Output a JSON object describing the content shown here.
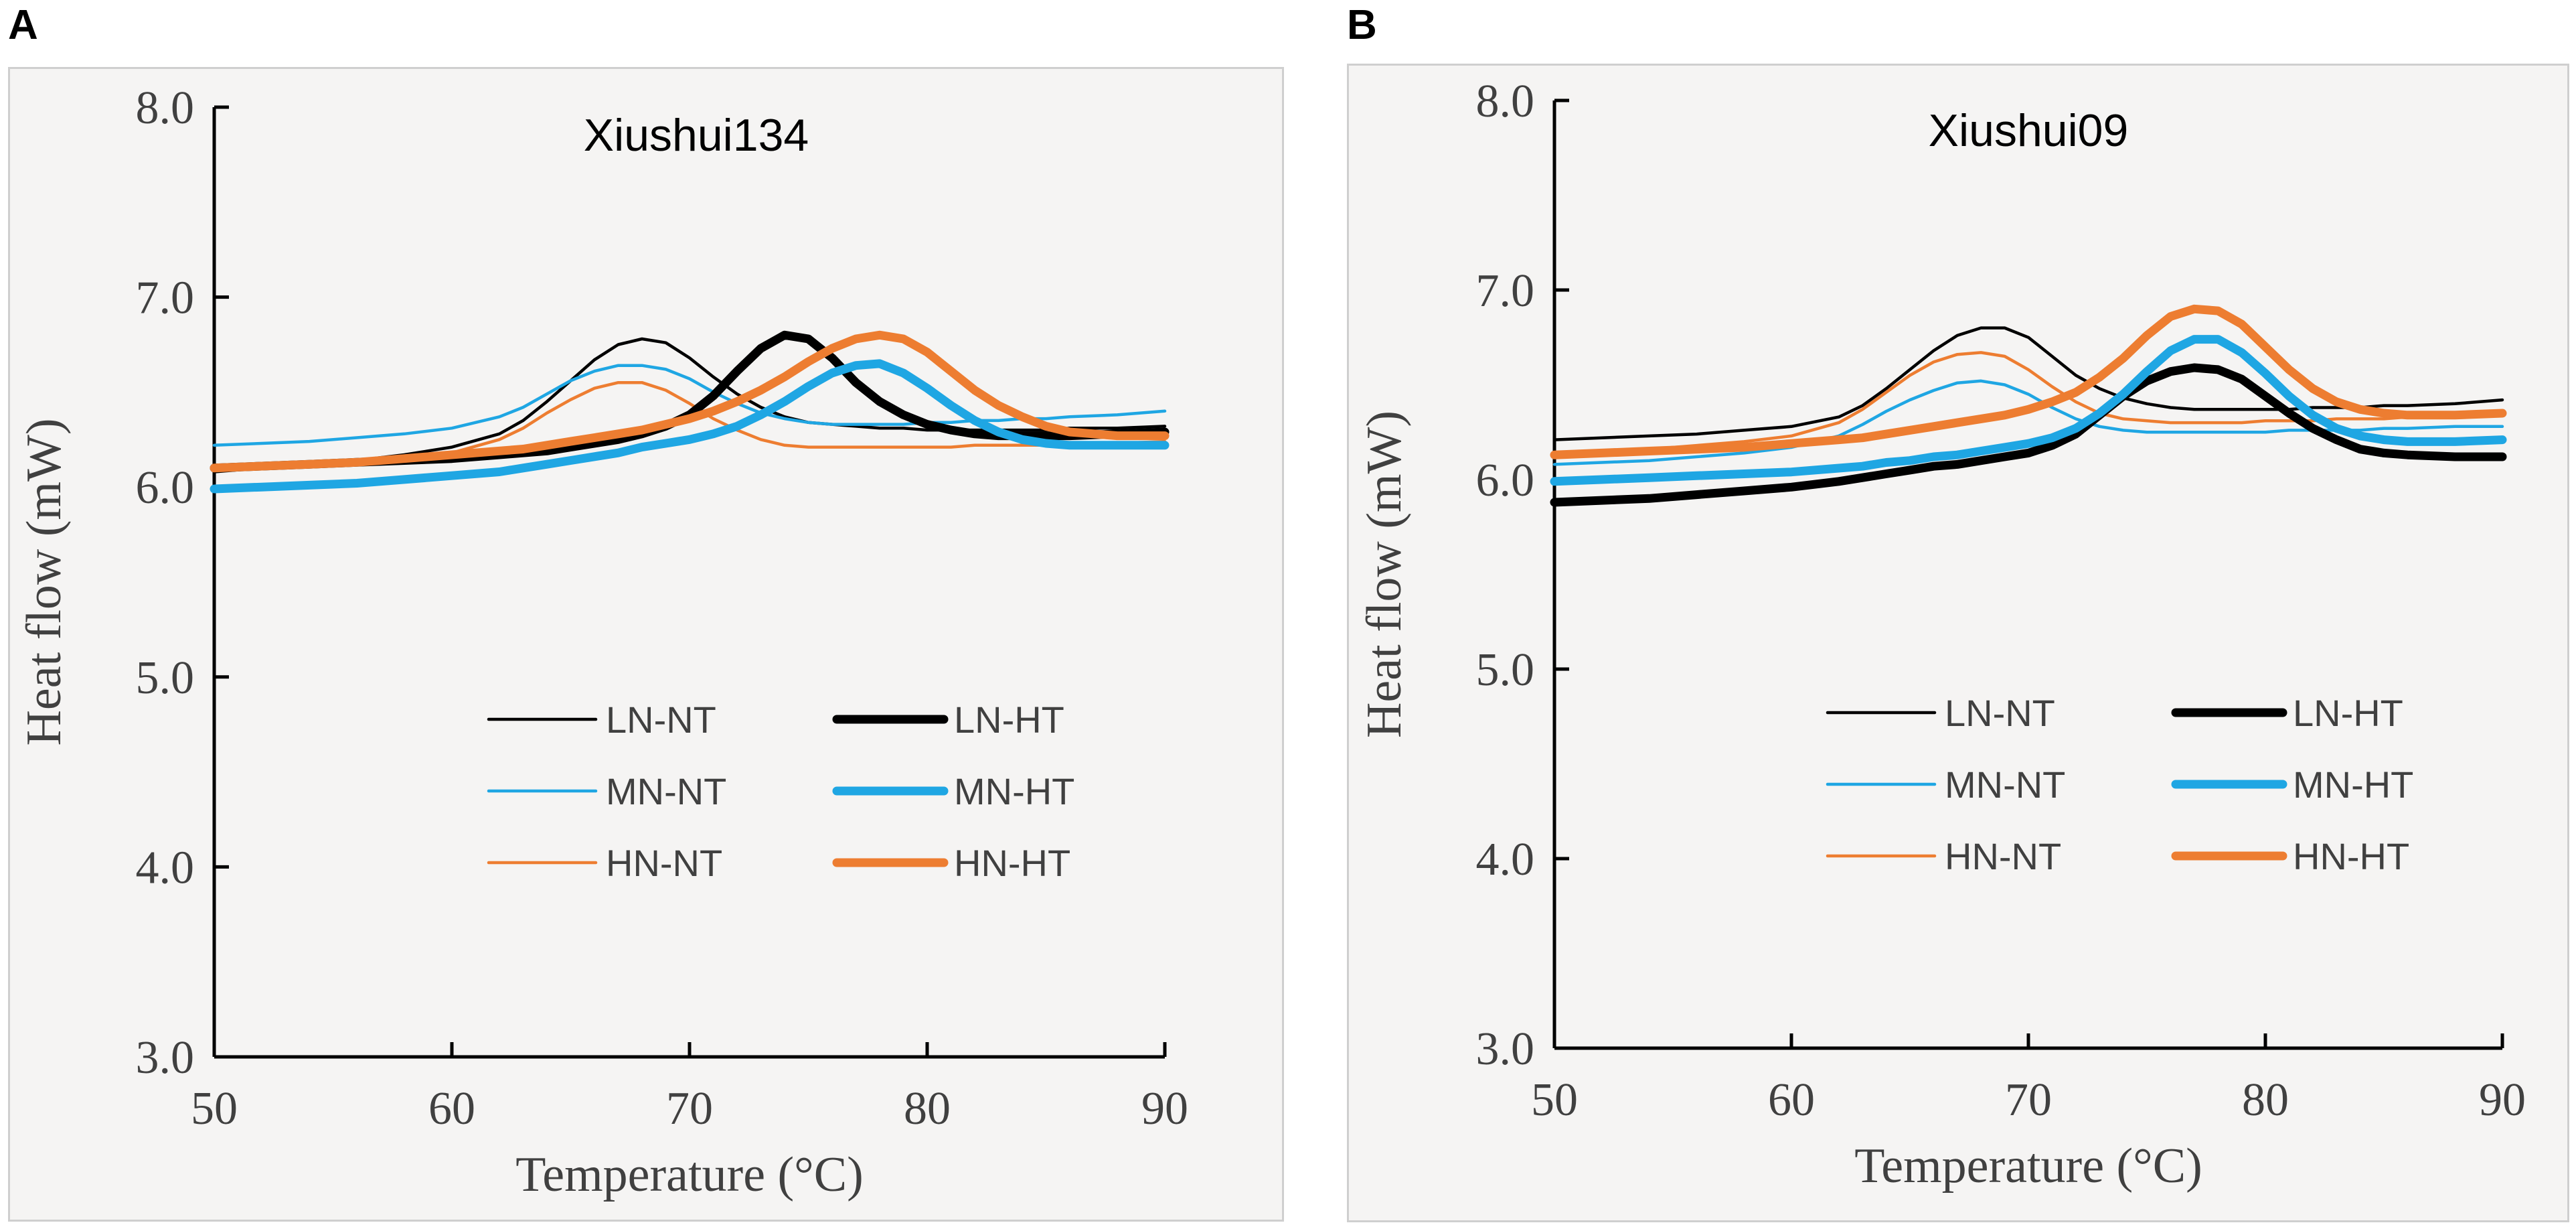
{
  "panels": [
    {
      "letter": "A"
    },
    {
      "letter": "B"
    }
  ],
  "chart_data": [
    {
      "type": "line",
      "title": "Xiushui134",
      "xlabel": "Temperature (°C)",
      "ylabel": "Heat flow (mW)",
      "xlim": [
        50,
        90
      ],
      "ylim": [
        3.0,
        8.0
      ],
      "xticks": [
        "50",
        "60",
        "70",
        "80",
        "90"
      ],
      "yticks": [
        "3.0",
        "4.0",
        "5.0",
        "6.0",
        "7.0",
        "8.0"
      ],
      "x": [
        50,
        52,
        54,
        56,
        58,
        60,
        62,
        63,
        64,
        65,
        66,
        67,
        68,
        69,
        70,
        71,
        72,
        73,
        74,
        75,
        76,
        77,
        78,
        79,
        80,
        81,
        82,
        83,
        84,
        85,
        86,
        88,
        90
      ],
      "series": [
        {
          "name": "LN-NT",
          "color": "#000000",
          "width": "thin",
          "values": [
            6.08,
            6.1,
            6.12,
            6.14,
            6.17,
            6.21,
            6.28,
            6.35,
            6.45,
            6.56,
            6.67,
            6.75,
            6.78,
            6.76,
            6.68,
            6.58,
            6.49,
            6.42,
            6.37,
            6.34,
            6.33,
            6.32,
            6.31,
            6.31,
            6.3,
            6.3,
            6.3,
            6.3,
            6.3,
            6.3,
            6.31,
            6.31,
            6.32
          ]
        },
        {
          "name": "LN-HT",
          "color": "#000000",
          "width": "thick",
          "values": [
            6.1,
            6.11,
            6.12,
            6.13,
            6.14,
            6.15,
            6.17,
            6.18,
            6.19,
            6.21,
            6.23,
            6.25,
            6.28,
            6.32,
            6.38,
            6.48,
            6.61,
            6.73,
            6.8,
            6.78,
            6.68,
            6.55,
            6.45,
            6.38,
            6.33,
            6.3,
            6.28,
            6.27,
            6.27,
            6.27,
            6.27,
            6.28,
            6.29
          ]
        },
        {
          "name": "MN-NT",
          "color": "#1fa6e3",
          "width": "thin",
          "values": [
            6.22,
            6.23,
            6.24,
            6.26,
            6.28,
            6.31,
            6.37,
            6.42,
            6.49,
            6.56,
            6.61,
            6.64,
            6.64,
            6.62,
            6.57,
            6.5,
            6.44,
            6.39,
            6.36,
            6.34,
            6.33,
            6.33,
            6.33,
            6.33,
            6.34,
            6.34,
            6.35,
            6.35,
            6.36,
            6.36,
            6.37,
            6.38,
            6.4
          ]
        },
        {
          "name": "MN-HT",
          "color": "#1fa6e3",
          "width": "thick",
          "values": [
            5.99,
            6.0,
            6.01,
            6.02,
            6.04,
            6.06,
            6.08,
            6.1,
            6.12,
            6.14,
            6.16,
            6.18,
            6.21,
            6.23,
            6.25,
            6.28,
            6.32,
            6.38,
            6.45,
            6.53,
            6.6,
            6.64,
            6.65,
            6.6,
            6.52,
            6.43,
            6.35,
            6.29,
            6.25,
            6.23,
            6.22,
            6.22,
            6.22
          ]
        },
        {
          "name": "HN-NT",
          "color": "#ed7d31",
          "width": "thin",
          "values": [
            6.1,
            6.11,
            6.12,
            6.13,
            6.15,
            6.18,
            6.25,
            6.31,
            6.39,
            6.46,
            6.52,
            6.55,
            6.55,
            6.51,
            6.44,
            6.36,
            6.3,
            6.25,
            6.22,
            6.21,
            6.21,
            6.21,
            6.21,
            6.21,
            6.21,
            6.21,
            6.22,
            6.22,
            6.22,
            6.22,
            6.23,
            6.23,
            6.24
          ]
        },
        {
          "name": "HN-HT",
          "color": "#ed7d31",
          "width": "thick",
          "values": [
            6.1,
            6.11,
            6.12,
            6.13,
            6.15,
            6.17,
            6.19,
            6.2,
            6.22,
            6.24,
            6.26,
            6.28,
            6.3,
            6.33,
            6.36,
            6.4,
            6.45,
            6.51,
            6.58,
            6.66,
            6.73,
            6.78,
            6.8,
            6.78,
            6.71,
            6.61,
            6.51,
            6.43,
            6.37,
            6.32,
            6.29,
            6.27,
            6.27
          ]
        }
      ]
    },
    {
      "type": "line",
      "title": "Xiushui09",
      "xlabel": "Temperature (°C)",
      "ylabel": "Heat flow (mW)",
      "xlim": [
        50,
        90
      ],
      "ylim": [
        3.0,
        8.0
      ],
      "xticks": [
        "50",
        "60",
        "70",
        "80",
        "90"
      ],
      "yticks": [
        "3.0",
        "4.0",
        "5.0",
        "6.0",
        "7.0",
        "8.0"
      ],
      "x": [
        50,
        52,
        54,
        56,
        58,
        60,
        62,
        63,
        64,
        65,
        66,
        67,
        68,
        69,
        70,
        71,
        72,
        73,
        74,
        75,
        76,
        77,
        78,
        79,
        80,
        81,
        82,
        83,
        84,
        85,
        86,
        88,
        90
      ],
      "series": [
        {
          "name": "LN-NT",
          "color": "#000000",
          "width": "thin",
          "values": [
            6.21,
            6.22,
            6.23,
            6.24,
            6.26,
            6.28,
            6.33,
            6.39,
            6.48,
            6.58,
            6.68,
            6.76,
            6.8,
            6.8,
            6.75,
            6.65,
            6.55,
            6.48,
            6.43,
            6.4,
            6.38,
            6.37,
            6.37,
            6.37,
            6.37,
            6.37,
            6.38,
            6.38,
            6.38,
            6.39,
            6.39,
            6.4,
            6.42
          ]
        },
        {
          "name": "LN-HT",
          "color": "#000000",
          "width": "thick",
          "values": [
            5.88,
            5.89,
            5.9,
            5.92,
            5.94,
            5.96,
            5.99,
            6.01,
            6.03,
            6.05,
            6.07,
            6.08,
            6.1,
            6.12,
            6.14,
            6.18,
            6.24,
            6.34,
            6.44,
            6.52,
            6.57,
            6.59,
            6.58,
            6.53,
            6.44,
            6.35,
            6.27,
            6.21,
            6.16,
            6.14,
            6.13,
            6.12,
            6.12
          ]
        },
        {
          "name": "MN-NT",
          "color": "#1fa6e3",
          "width": "thin",
          "values": [
            6.08,
            6.09,
            6.1,
            6.12,
            6.14,
            6.17,
            6.23,
            6.29,
            6.36,
            6.42,
            6.47,
            6.51,
            6.52,
            6.5,
            6.45,
            6.38,
            6.32,
            6.28,
            6.26,
            6.25,
            6.25,
            6.25,
            6.25,
            6.25,
            6.25,
            6.26,
            6.26,
            6.26,
            6.26,
            6.27,
            6.27,
            6.28,
            6.28
          ]
        },
        {
          "name": "MN-HT",
          "color": "#1fa6e3",
          "width": "thick",
          "values": [
            5.99,
            6.0,
            6.01,
            6.02,
            6.03,
            6.04,
            6.06,
            6.07,
            6.09,
            6.1,
            6.12,
            6.13,
            6.15,
            6.17,
            6.19,
            6.22,
            6.27,
            6.35,
            6.45,
            6.57,
            6.68,
            6.74,
            6.74,
            6.67,
            6.56,
            6.44,
            6.34,
            6.27,
            6.23,
            6.21,
            6.2,
            6.2,
            6.21
          ]
        },
        {
          "name": "HN-NT",
          "color": "#ed7d31",
          "width": "thin",
          "values": [
            6.14,
            6.15,
            6.16,
            6.18,
            6.2,
            6.23,
            6.3,
            6.37,
            6.46,
            6.55,
            6.62,
            6.66,
            6.67,
            6.65,
            6.58,
            6.49,
            6.41,
            6.35,
            6.32,
            6.31,
            6.3,
            6.3,
            6.3,
            6.3,
            6.31,
            6.31,
            6.31,
            6.32,
            6.32,
            6.32,
            6.33,
            6.33,
            6.34
          ]
        },
        {
          "name": "HN-HT",
          "color": "#ed7d31",
          "width": "thick",
          "values": [
            6.13,
            6.14,
            6.15,
            6.16,
            6.17,
            6.19,
            6.21,
            6.22,
            6.24,
            6.26,
            6.28,
            6.3,
            6.32,
            6.34,
            6.37,
            6.41,
            6.46,
            6.54,
            6.64,
            6.76,
            6.86,
            6.9,
            6.89,
            6.82,
            6.7,
            6.58,
            6.48,
            6.41,
            6.37,
            6.35,
            6.34,
            6.34,
            6.35
          ]
        }
      ]
    }
  ]
}
